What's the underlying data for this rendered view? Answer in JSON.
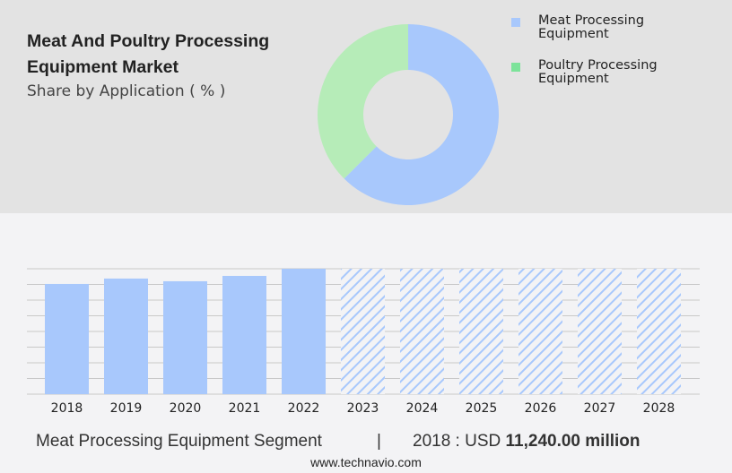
{
  "header": {
    "title": "Meat And Poultry Processing Equipment Market",
    "subtitle": "Share by Application ( % )"
  },
  "chart_data": [
    {
      "type": "pie",
      "donut": true,
      "slices": [
        {
          "name": "Meat Processing Equipment",
          "value": 62.5,
          "color": "#a8c8fc"
        },
        {
          "name": "Poultry Processing Equipment",
          "value": 37.5,
          "color": "#b6ecb8"
        }
      ],
      "legend": [
        {
          "label": "Meat Processing Equipment",
          "color": "#a8c8fc"
        },
        {
          "label": "Poultry Processing Equipment",
          "color": "#7de39a"
        }
      ],
      "legend_placement": "right"
    },
    {
      "type": "bar",
      "categories": [
        "2018",
        "2019",
        "2020",
        "2021",
        "2022",
        "2023",
        "2024",
        "2025",
        "2026",
        "2027",
        "2028"
      ],
      "values": [
        11240,
        11790,
        11515,
        12060,
        12790,
        null,
        null,
        null,
        null,
        null,
        null
      ],
      "forecast": [
        false,
        false,
        false,
        false,
        false,
        true,
        true,
        true,
        true,
        true,
        true
      ],
      "ylim": [
        0,
        12790
      ],
      "grid": true,
      "bar_color": "#a8c8fc",
      "unit": "USD million"
    }
  ],
  "footer": {
    "segment": "Meat Processing Equipment Segment",
    "separator": "|",
    "value_prefix": "2018 : USD",
    "value": "11,240.00 million",
    "website": "www.technavio.com"
  }
}
